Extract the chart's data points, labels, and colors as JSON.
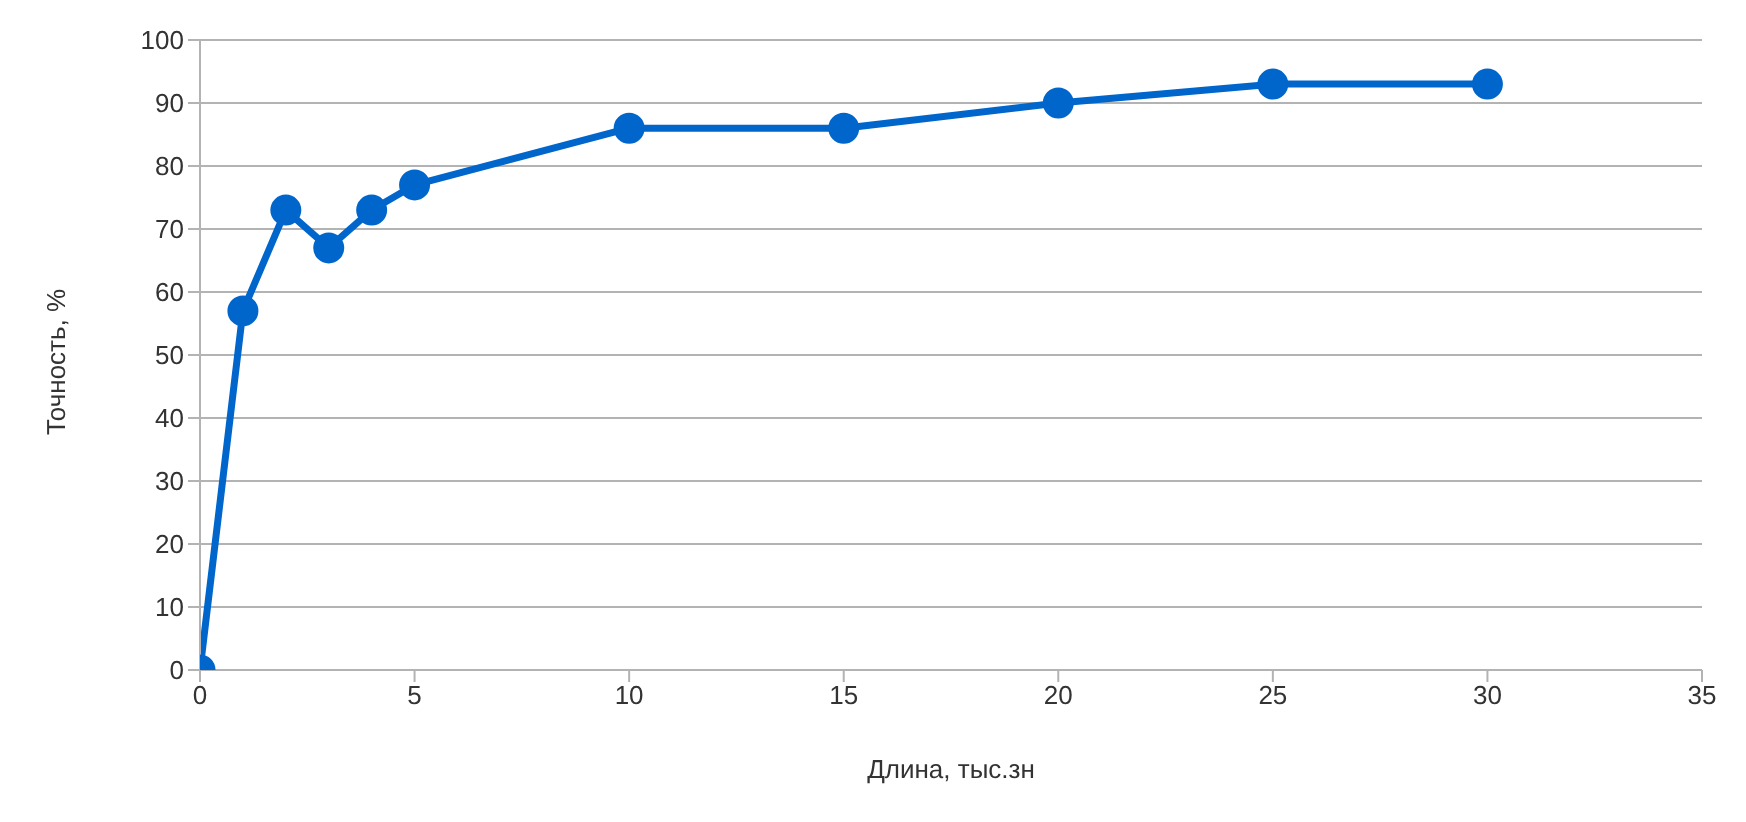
{
  "chart_data": {
    "type": "line",
    "xlabel": "Длина, тыс.зн",
    "ylabel": "Точность, %",
    "x": [
      0,
      1,
      2,
      3,
      4,
      5,
      10,
      15,
      20,
      25,
      30
    ],
    "series": [
      {
        "color": "#0066cc",
        "values": [
          0,
          57,
          73,
          67,
          73,
          77,
          86,
          86,
          90,
          93,
          93
        ]
      }
    ],
    "xlim": [
      0,
      35
    ],
    "xticks": [
      0,
      5,
      10,
      15,
      20,
      25,
      30,
      35
    ],
    "ylim": [
      0,
      100
    ],
    "yticks": [
      0,
      10,
      20,
      30,
      40,
      50,
      60,
      70,
      80,
      90,
      100
    ],
    "grid": "y",
    "marker": "circle",
    "line_style": "solid",
    "legend": false
  }
}
